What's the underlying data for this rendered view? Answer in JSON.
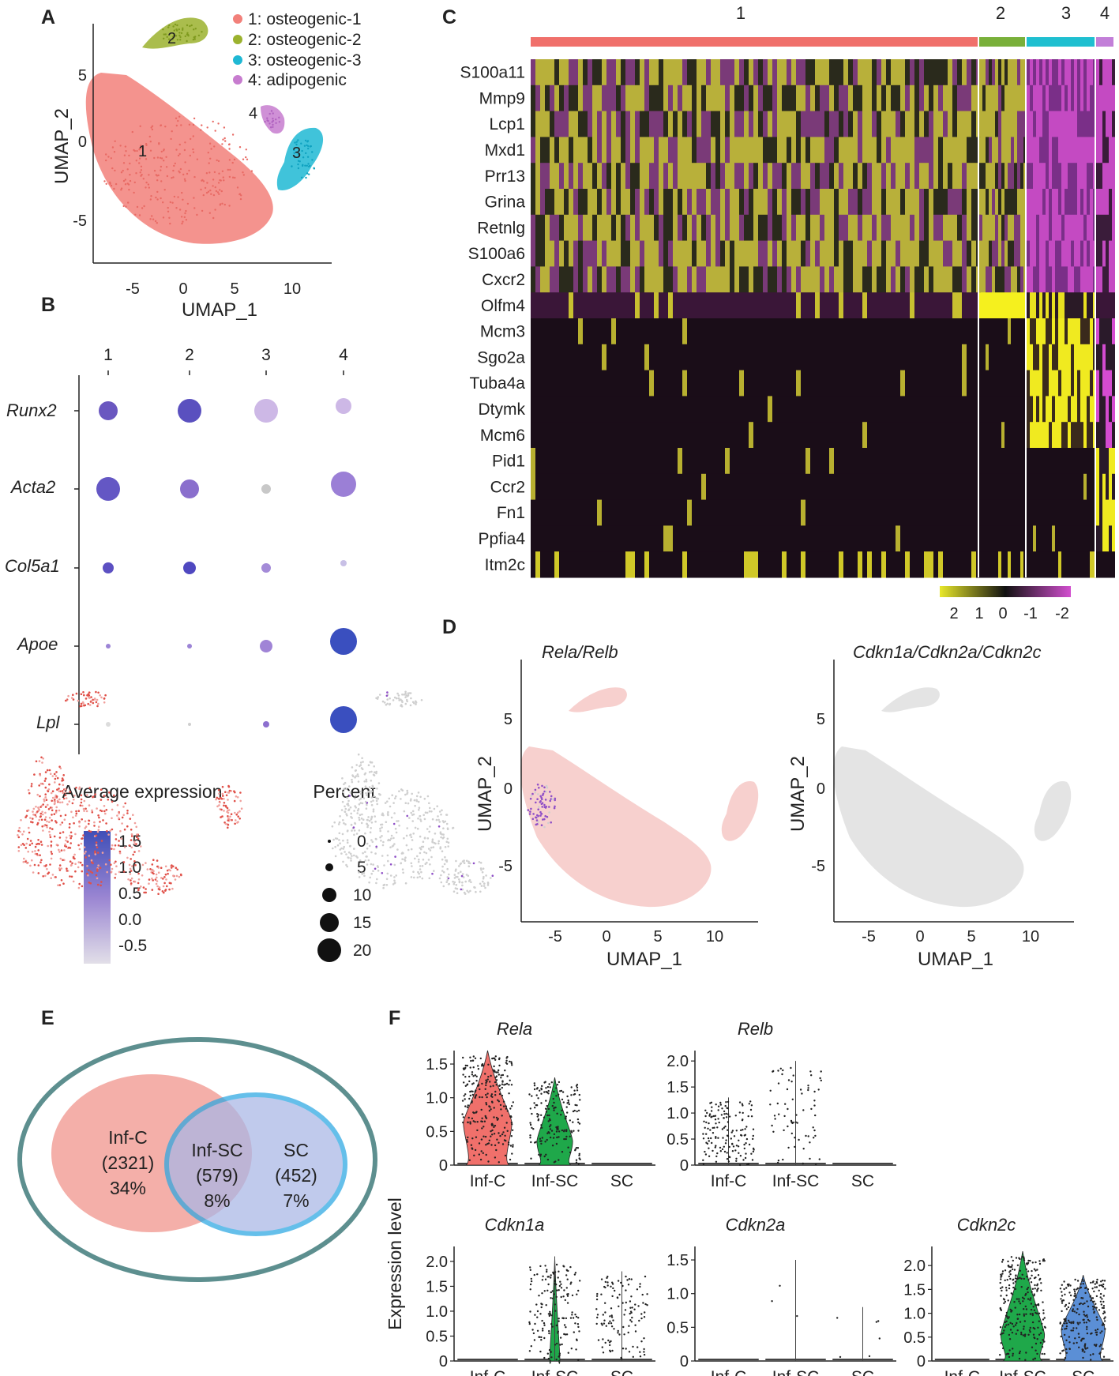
{
  "panels": {
    "a": "A",
    "b": "B",
    "c": "C",
    "d": "D",
    "e": "E",
    "f": "F"
  },
  "panelA": {
    "xlabel": "UMAP_1",
    "ylabel": "UMAP_2",
    "xticks": [
      "-5",
      "0",
      "5",
      "10"
    ],
    "yticks": [
      "5",
      "0",
      "-5"
    ],
    "legend": [
      {
        "label": "1: osteogenic-1",
        "color": "#f2807a"
      },
      {
        "label": "2: osteogenic-2",
        "color": "#9bb22e"
      },
      {
        "label": "3: osteogenic-3",
        "color": "#1fb8d4"
      },
      {
        "label": "4: adipogenic",
        "color": "#c77ccf"
      }
    ],
    "cluster_labels": [
      "1",
      "2",
      "3",
      "4"
    ]
  },
  "panelB": {
    "columns": [
      "1",
      "2",
      "3",
      "4"
    ],
    "genes": [
      "Runx2",
      "Acta2",
      "Col5a1",
      "Apoe",
      "Lpl"
    ],
    "avg_title": "Average expression",
    "avg_ticks": [
      "1.5",
      "1.0",
      "0.5",
      "0.0",
      "-0.5"
    ],
    "pct_title": "Percent",
    "pct_ticks": [
      "0",
      "5",
      "10",
      "15",
      "20"
    ]
  },
  "panelC": {
    "clusters": [
      {
        "label": "1",
        "color": "#f0706b"
      },
      {
        "label": "2",
        "color": "#79b03a"
      },
      {
        "label": "3",
        "color": "#1fbfd0"
      },
      {
        "label": "4",
        "color": "#c27fd8"
      }
    ],
    "genes": [
      "S100a11",
      "Mmp9",
      "Lcp1",
      "Mxd1",
      "Prr13",
      "Grina",
      "Retnlg",
      "S100a6",
      "Cxcr2",
      "Olfm4",
      "Mcm3",
      "Sgo2a",
      "Tuba4a",
      "Dtymk",
      "Mcm6",
      "Pid1",
      "Ccr2",
      "Fn1",
      "Ppfia4",
      "Itm2c"
    ],
    "scale_ticks": [
      "2",
      "1",
      "0",
      "-1",
      "-2"
    ]
  },
  "panelD": {
    "left_title": "Rela/Relb",
    "right_title": "Cdkn1a/Cdkn2a/Cdkn2c",
    "xlabel": "UMAP_1",
    "ylabel": "UMAP_2",
    "xticks": [
      "-5",
      "0",
      "5",
      "10"
    ],
    "yticks": [
      "5",
      "0",
      "-5"
    ]
  },
  "panelE": {
    "left": {
      "name": "Inf-C",
      "count": "(2321)",
      "pct": "34%"
    },
    "mid": {
      "name": "Inf-SC",
      "count": "(579)",
      "pct": "8%"
    },
    "right": {
      "name": "SC",
      "count": "(452)",
      "pct": "7%"
    }
  },
  "panelF": {
    "ylabel": "Expression level",
    "groups": [
      "Inf-C",
      "Inf-SC",
      "SC"
    ],
    "group_colors": [
      "#f0706b",
      "#1fa84a",
      "#5b8fd6"
    ],
    "plots": [
      {
        "title": "Rela",
        "yticks": [
          "1.5",
          "1.0",
          "0.5",
          "0"
        ]
      },
      {
        "title": "Relb",
        "yticks": [
          "2.0",
          "1.5",
          "1.0",
          "0.5",
          "0"
        ]
      },
      {
        "title": "Cdkn1a",
        "yticks": [
          "2.0",
          "1.5",
          "1.0",
          "0.5",
          "0"
        ]
      },
      {
        "title": "Cdkn2a",
        "yticks": [
          "1.5",
          "1.0",
          "0.5",
          "0"
        ]
      },
      {
        "title": "Cdkn2c",
        "yticks": [
          "2.0",
          "1.5",
          "1.0",
          "0.5",
          "0"
        ]
      }
    ]
  }
}
